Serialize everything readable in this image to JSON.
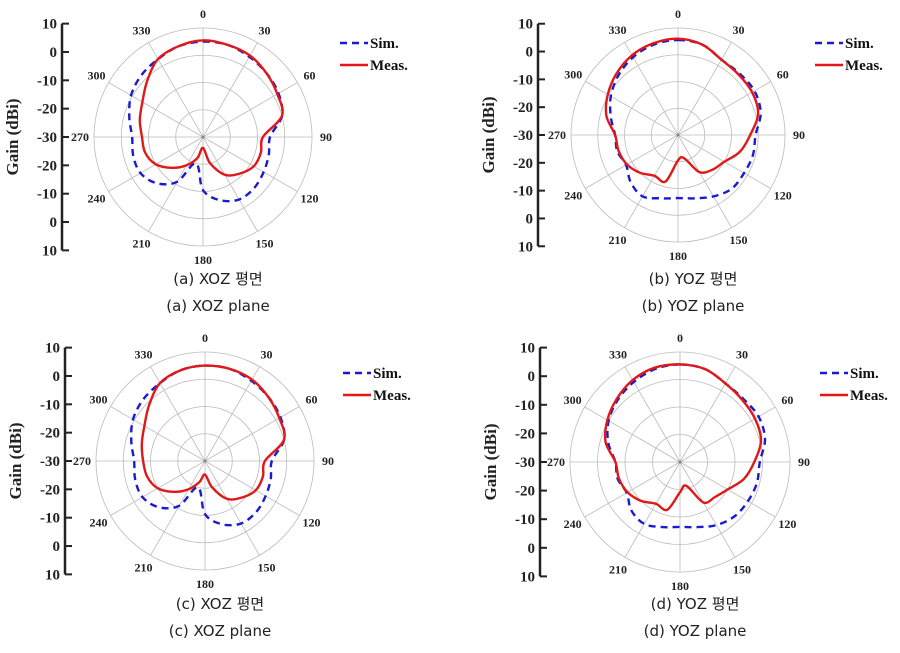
{
  "chart_data": [
    {
      "type": "polar-line",
      "caption_ko": "(a) XOZ 평면",
      "caption_en": "(a) XOZ plane",
      "ylabel": "Gain (dBi)",
      "radial_tick_labels": [
        "10",
        "0",
        "-10",
        "-20",
        "-30",
        "-20",
        "-10",
        "0",
        "10"
      ],
      "r_range": [
        -30,
        10
      ],
      "angle_labels": [
        "0",
        "30",
        "60",
        "90",
        "120",
        "150",
        "180",
        "210",
        "240",
        "270",
        "300",
        "330"
      ],
      "legend": [
        "Sim.",
        "Meas."
      ],
      "angles_deg": [
        0,
        15,
        30,
        45,
        60,
        75,
        90,
        105,
        120,
        135,
        150,
        165,
        180,
        195,
        210,
        225,
        240,
        255,
        270,
        285,
        300,
        315,
        330,
        345
      ],
      "series": [
        {
          "name": "Sim.",
          "color": "#1a1ad0",
          "dash": true,
          "values": [
            5,
            5,
            4,
            3,
            2,
            0,
            -5.4,
            -5,
            -4.3,
            -3.5,
            -3.5,
            -6,
            -10.5,
            -20,
            -11,
            -6,
            -3.5,
            -3.5,
            -4,
            -2,
            0.5,
            2,
            3,
            4.5
          ]
        },
        {
          "name": "Meas.",
          "color": "#e01818",
          "dash": false,
          "values": [
            5.5,
            5,
            4.5,
            3,
            1.5,
            0,
            -8,
            -8,
            -8.5,
            -11,
            -14,
            -20,
            -26,
            -22,
            -18,
            -14,
            -10,
            -8,
            -7.6,
            -6,
            -4.3,
            -1,
            3,
            4.5
          ]
        }
      ]
    },
    {
      "type": "polar-line",
      "caption_ko": "(b) YOZ 평면",
      "caption_en": "(b) YOZ plane",
      "ylabel": "Gain (dBi)",
      "radial_tick_labels": [
        "10",
        "0",
        "-10",
        "-20",
        "-30",
        "-20",
        "-10",
        "0",
        "10"
      ],
      "r_range": [
        -30,
        10
      ],
      "angle_labels": [
        "0",
        "30",
        "60",
        "90",
        "120",
        "150",
        "180",
        "210",
        "240",
        "270",
        "300",
        "330"
      ],
      "legend": [
        "Sim.",
        "Meas."
      ],
      "angles_deg": [
        0,
        15,
        30,
        45,
        60,
        75,
        90,
        105,
        120,
        135,
        150,
        165,
        180,
        195,
        210,
        225,
        240,
        255,
        270,
        285,
        300,
        315,
        330,
        345
      ],
      "series": [
        {
          "name": "Sim.",
          "color": "#1a1ad0",
          "dash": true,
          "values": [
            5.5,
            5,
            2.5,
            2.5,
            3,
            2,
            -1,
            -1,
            -1.5,
            -1.6,
            -3.5,
            -5.5,
            -6.4,
            -5.5,
            -3.5,
            -5,
            -7.6,
            -6.5,
            -6.5,
            -4,
            -1,
            1.5,
            3.6,
            5
          ]
        },
        {
          "name": "Meas.",
          "color": "#e01818",
          "dash": false,
          "values": [
            6,
            5,
            2.5,
            2,
            2,
            1,
            -3,
            -6,
            -10,
            -11.7,
            -14,
            -21,
            -20.5,
            -12,
            -12.4,
            -10,
            -8,
            -7,
            -6.5,
            -2.3,
            0.3,
            2.5,
            4.4,
            5.5
          ]
        }
      ]
    },
    {
      "type": "polar-line",
      "caption_ko": "(c) XOZ 평면",
      "caption_en": "(c) XOZ plane",
      "ylabel": "Gain (dBi)",
      "radial_tick_labels": [
        "10",
        "0",
        "-10",
        "-20",
        "-30",
        "-20",
        "-10",
        "0",
        "10"
      ],
      "r_range": [
        -30,
        10
      ],
      "angle_labels": [
        "0",
        "30",
        "60",
        "90",
        "120",
        "150",
        "180",
        "210",
        "240",
        "270",
        "300",
        "330"
      ],
      "legend": [
        "Sim.",
        "Meas."
      ],
      "angles_deg": [
        0,
        15,
        30,
        45,
        60,
        75,
        90,
        105,
        120,
        135,
        150,
        165,
        180,
        195,
        210,
        225,
        240,
        255,
        270,
        285,
        300,
        315,
        330,
        345
      ],
      "series": [
        {
          "name": "Sim.",
          "color": "#1a1ad0",
          "dash": true,
          "values": [
            5,
            5,
            4,
            3,
            2,
            0,
            -5.5,
            -5,
            -4.3,
            -3.5,
            -3.5,
            -6,
            -10.5,
            -20,
            -11,
            -6,
            -3.5,
            -3.5,
            -4,
            -2,
            0.5,
            2,
            3,
            4.5
          ]
        },
        {
          "name": "Meas.",
          "color": "#e01818",
          "dash": false,
          "values": [
            5,
            5,
            4.5,
            3,
            1.5,
            0,
            -8,
            -8,
            -8.5,
            -11,
            -14,
            -20,
            -25,
            -22,
            -18,
            -14,
            -10,
            -8,
            -7.3,
            -6,
            -4.3,
            -1,
            3,
            4.5
          ]
        }
      ]
    },
    {
      "type": "polar-line",
      "caption_ko": "(d) YOZ 평면",
      "caption_en": "(d) YOZ plane",
      "ylabel": "Gain (dBi)",
      "radial_tick_labels": [
        "10",
        "0",
        "-10",
        "-20",
        "-30",
        "-20",
        "-10",
        "0",
        "10"
      ],
      "r_range": [
        -30,
        10
      ],
      "angle_labels": [
        "0",
        "30",
        "60",
        "90",
        "120",
        "150",
        "180",
        "210",
        "240",
        "270",
        "300",
        "330"
      ],
      "legend": [
        "Sim.",
        "Meas."
      ],
      "angles_deg": [
        0,
        15,
        30,
        45,
        60,
        75,
        90,
        105,
        120,
        135,
        150,
        165,
        180,
        195,
        210,
        225,
        240,
        255,
        270,
        285,
        300,
        315,
        330,
        345
      ],
      "series": [
        {
          "name": "Sim.",
          "color": "#1a1ad0",
          "dash": true,
          "values": [
            5.5,
            5,
            3,
            2.5,
            3,
            2,
            -1,
            -1,
            -1.5,
            -2,
            -3.5,
            -5.5,
            -6.4,
            -5.5,
            -4,
            -5,
            -7.6,
            -6.5,
            -6.5,
            -3,
            0,
            2,
            3.6,
            5
          ]
        },
        {
          "name": "Meas.",
          "color": "#e01818",
          "dash": false,
          "values": [
            5.5,
            5,
            3,
            2,
            1.5,
            0.5,
            -3,
            -6,
            -10,
            -12,
            -13,
            -21,
            -19,
            -12,
            -12.5,
            -10,
            -8,
            -7,
            -6.5,
            -2,
            0.5,
            2.5,
            4.4,
            5.5
          ]
        }
      ]
    }
  ]
}
